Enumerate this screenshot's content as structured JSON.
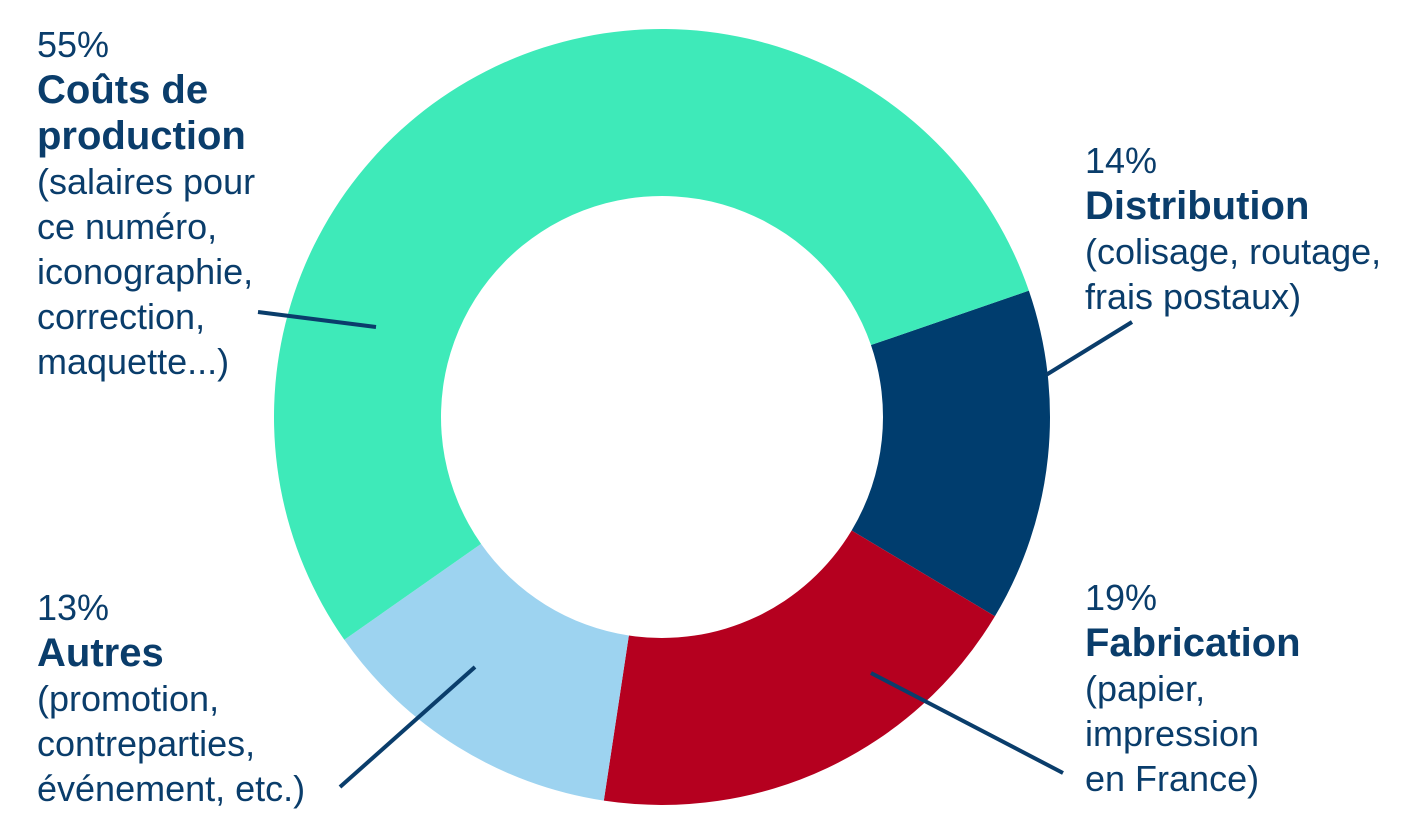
{
  "chart_data": {
    "type": "donut",
    "categories": [
      "Distribution",
      "Fabrication",
      "Autres",
      "Coûts de production"
    ],
    "values": [
      14,
      19,
      13,
      55
    ],
    "value_labels": [
      "14%",
      "19%",
      "13%",
      "55%"
    ],
    "descriptions": [
      [
        "(colisage, routage,",
        "frais postaux)"
      ],
      [
        "(papier,",
        "impression",
        "en France)"
      ],
      [
        "(promotion,",
        "contreparties,",
        "événement, etc.)"
      ],
      [
        "(salaires pour",
        "ce numéro,",
        "iconographie,",
        "correction,",
        "maquette...)"
      ]
    ],
    "colors": [
      "#003d6e",
      "#b5001f",
      "#9dd3f0",
      "#3eeab9"
    ]
  }
}
